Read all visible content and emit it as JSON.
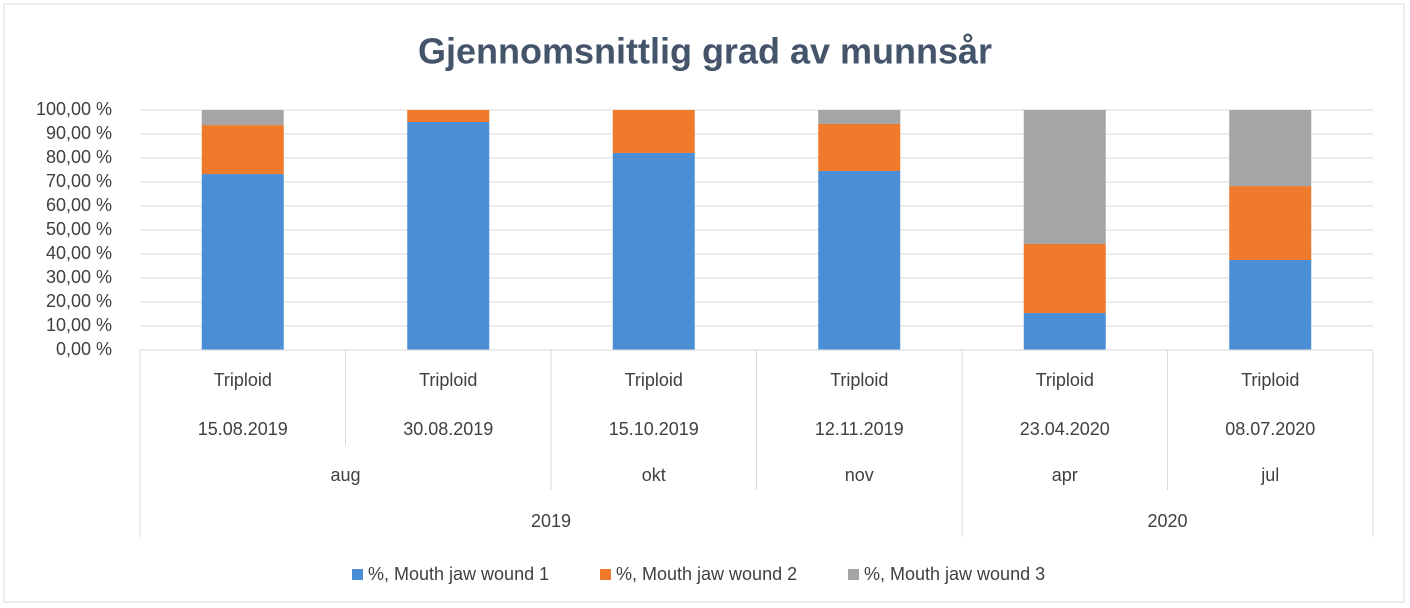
{
  "chart_data": {
    "type": "stacked_bar",
    "title": "Gjennomsnittlig grad av munnsår",
    "categories": [
      "15.08.2019",
      "30.08.2019",
      "15.10.2019",
      "12.11.2019",
      "23.04.2020",
      "08.07.2020"
    ],
    "category_labels": [
      "Triploid",
      "Triploid",
      "Triploid",
      "Triploid",
      "Triploid",
      "Triploid"
    ],
    "month_groups": [
      {
        "label": "aug",
        "count": 2
      },
      {
        "label": "okt",
        "count": 1
      },
      {
        "label": "nov",
        "count": 1
      },
      {
        "label": "apr",
        "count": 1
      },
      {
        "label": "jul",
        "count": 1
      }
    ],
    "year_groups": [
      {
        "label": "2019",
        "count": 4
      },
      {
        "label": "2020",
        "count": 2
      }
    ],
    "series": [
      {
        "name": "%, Mouth jaw wound 1",
        "color": "#4a8fd6",
        "values": [
          73.3,
          95.0,
          82.1,
          74.6,
          15.4,
          37.5
        ]
      },
      {
        "name": "%, Mouth jaw wound 2",
        "color": "#ef7a2c",
        "values": [
          20.4,
          5.0,
          17.9,
          19.6,
          28.8,
          30.8
        ]
      },
      {
        "name": "%, Mouth jaw wound 3",
        "color": "#a5a5a5",
        "values": [
          6.3,
          0,
          0,
          5.8,
          55.8,
          31.7
        ]
      }
    ],
    "ylim": [
      0,
      100
    ],
    "yticks": [
      {
        "value": 0,
        "label": "0,00 %"
      },
      {
        "value": 10,
        "label": "10,00 %"
      },
      {
        "value": 20,
        "label": "20,00 %"
      },
      {
        "value": 30,
        "label": "30,00 %"
      },
      {
        "value": 40,
        "label": "40,00 %"
      },
      {
        "value": 50,
        "label": "50,00 %"
      },
      {
        "value": 60,
        "label": "60,00 %"
      },
      {
        "value": 70,
        "label": "70,00 %"
      },
      {
        "value": 80,
        "label": "80,00 %"
      },
      {
        "value": 90,
        "label": "90,00 %"
      },
      {
        "value": 100,
        "label": "100,00 %"
      }
    ],
    "grid": true,
    "legend": "bottom"
  }
}
